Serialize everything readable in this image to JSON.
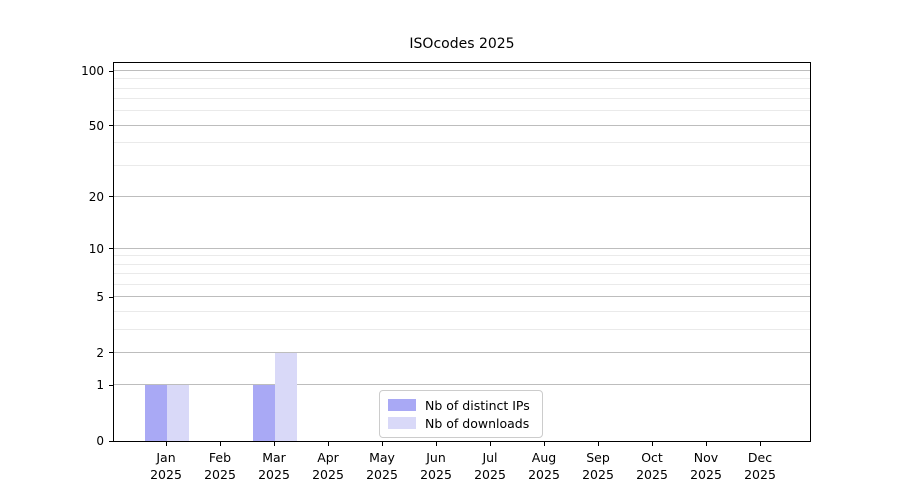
{
  "title": "ISOcodes 2025",
  "colors": {
    "distinct_ips": "#a9a9f5",
    "downloads": "#d9d9f8",
    "major_grid": "#bdbdbd",
    "minor_grid": "#eaeaea",
    "axis": "#000000",
    "legend_border": "#cccccc"
  },
  "chart_data": {
    "type": "bar",
    "title": "ISOcodes 2025",
    "categories": [
      "Jan 2025",
      "Feb 2025",
      "Mar 2025",
      "Apr 2025",
      "May 2025",
      "Jun 2025",
      "Jul 2025",
      "Aug 2025",
      "Sep 2025",
      "Oct 2025",
      "Nov 2025",
      "Dec 2025"
    ],
    "x_tick_months": [
      "Jan",
      "Feb",
      "Mar",
      "Apr",
      "May",
      "Jun",
      "Jul",
      "Aug",
      "Sep",
      "Oct",
      "Nov",
      "Dec"
    ],
    "x_tick_year": "2025",
    "series": [
      {
        "name": "Nb of distinct IPs",
        "color": "#a9a9f5",
        "values": [
          1,
          0,
          1,
          0,
          0,
          0,
          0,
          0,
          0,
          0,
          0,
          0
        ]
      },
      {
        "name": "Nb of downloads",
        "color": "#d9d9f8",
        "values": [
          1,
          0,
          2,
          0,
          0,
          0,
          0,
          0,
          0,
          0,
          0,
          0
        ]
      }
    ],
    "xlabel": "",
    "ylabel": "",
    "y_scale": "log1p",
    "y_major_ticks": [
      0,
      1,
      2,
      5,
      10,
      20,
      50,
      100
    ],
    "y_minor_gridlines": [
      3,
      4,
      6,
      7,
      8,
      9,
      30,
      40,
      60,
      70,
      80,
      90
    ],
    "ylim": [
      0,
      115
    ],
    "grid": "horizontal",
    "legend_position": "lower center"
  }
}
